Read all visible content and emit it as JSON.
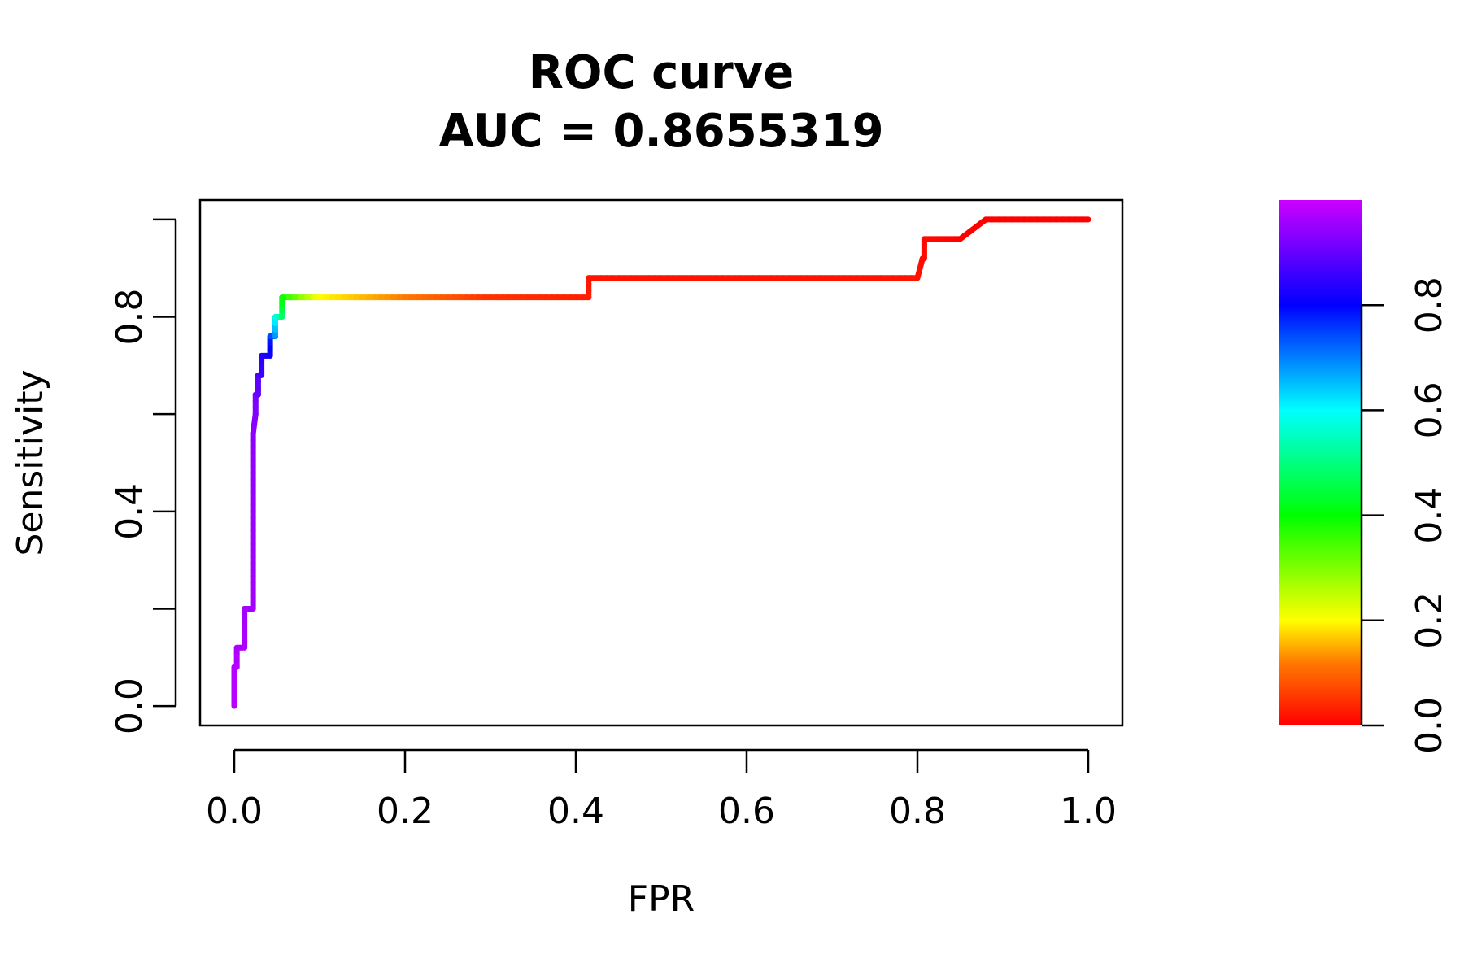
{
  "chart_data": {
    "type": "line",
    "title": "ROC curve",
    "subtitle": "AUC = 0.8655319",
    "xlabel": "FPR",
    "ylabel": "Sensitivity",
    "xlim": [
      -0.04,
      1.04
    ],
    "ylim": [
      -0.04,
      1.04
    ],
    "x_ticks": [
      0.0,
      0.2,
      0.4,
      0.6,
      0.8,
      1.0
    ],
    "x_tick_labels": [
      "0.0",
      "0.2",
      "0.4",
      "0.6",
      "0.8",
      "1.0"
    ],
    "y_ticks": [
      0.0,
      0.2,
      0.4,
      0.6,
      0.8,
      1.0
    ],
    "y_tick_labels": [
      "0.0",
      "",
      "0.4",
      "",
      "0.8",
      ""
    ],
    "grid": false,
    "legend": "colorbar-right",
    "colorbar": {
      "ticks": [
        0.0,
        0.2,
        0.4,
        0.6,
        0.8
      ],
      "tick_labels": [
        "0.0",
        "0.2",
        "0.4",
        "0.6",
        "0.8"
      ],
      "range": [
        0.0,
        1.0
      ],
      "palette": "rainbow"
    },
    "series": [
      {
        "x": [
          0.0,
          0.0,
          0.003,
          0.003,
          0.012,
          0.012,
          0.022,
          0.022,
          0.025,
          0.025,
          0.028,
          0.028,
          0.032,
          0.032,
          0.042,
          0.042,
          0.048,
          0.048,
          0.056,
          0.056,
          0.1,
          0.2,
          0.3,
          0.415,
          0.415,
          0.5,
          0.6,
          0.7,
          0.8,
          0.806,
          0.808,
          0.808,
          0.85,
          0.88,
          1.0
        ],
        "y": [
          0.0,
          0.08,
          0.08,
          0.12,
          0.12,
          0.2,
          0.2,
          0.56,
          0.6,
          0.64,
          0.64,
          0.68,
          0.68,
          0.72,
          0.72,
          0.76,
          0.76,
          0.8,
          0.8,
          0.84,
          0.84,
          0.84,
          0.84,
          0.84,
          0.88,
          0.88,
          0.88,
          0.88,
          0.88,
          0.92,
          0.92,
          0.96,
          0.96,
          1.0,
          1.0
        ],
        "cutoff": [
          0.98,
          0.98,
          0.98,
          0.97,
          0.97,
          0.96,
          0.96,
          0.94,
          0.93,
          0.92,
          0.9,
          0.89,
          0.86,
          0.84,
          0.82,
          0.78,
          0.7,
          0.6,
          0.5,
          0.4,
          0.2,
          0.12,
          0.05,
          0.03,
          0.02,
          0.02,
          0.02,
          0.02,
          0.02,
          0.01,
          0.01,
          0.01,
          0.0,
          0.0,
          0.0
        ]
      }
    ]
  }
}
